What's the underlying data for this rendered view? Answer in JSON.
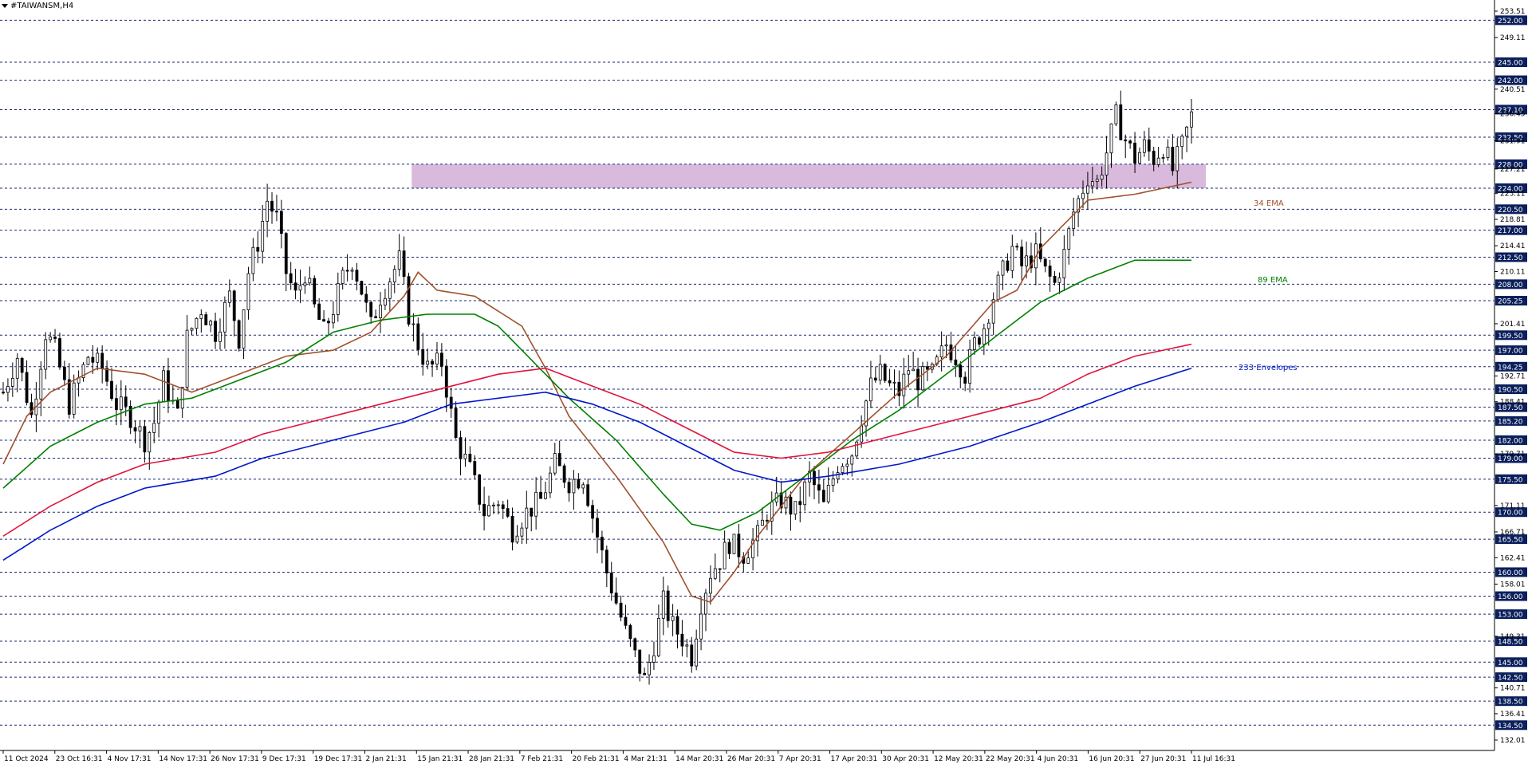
{
  "window": {
    "title": "#TAIWANSM,H4"
  },
  "colors": {
    "background": "#ffffff",
    "candle": "#000000",
    "zone": "#d9b9dc",
    "ema34": "#a0522d",
    "ema89": "#008000",
    "envelope_upper": "#e0143c",
    "envelope_lower": "#0018c8",
    "level_line": "#1a2a6e",
    "level_label_bg": "#0b1f5c"
  },
  "chart_data": {
    "type": "line",
    "instrument": "#TAIWANSM",
    "timeframe": "H4",
    "ylim": [
      132.01,
      253.51
    ],
    "price_scale_ticks": [
      "253.51",
      "249.11",
      "240.51",
      "236.45",
      "231.91",
      "227.21",
      "223.11",
      "218.81",
      "214.41",
      "210.11",
      "201.41",
      "192.71",
      "188.41",
      "179.71",
      "171.11",
      "166.71",
      "162.41",
      "158.01",
      "149.31",
      "140.71",
      "136.41",
      "132.01"
    ],
    "level_labels": [
      "252.00",
      "245.00",
      "242.00",
      "237.10",
      "232.50",
      "228.00",
      "224.00",
      "220.50",
      "217.00",
      "212.50",
      "208.00",
      "205.25",
      "199.50",
      "197.00",
      "194.25",
      "190.50",
      "187.50",
      "185.20",
      "182.00",
      "179.00",
      "175.50",
      "170.00",
      "165.50",
      "160.00",
      "156.00",
      "153.00",
      "148.50",
      "145.00",
      "142.50",
      "138.50",
      "134.50"
    ],
    "x_tick_labels": [
      "11 Oct 2024",
      "23 Oct 16:31",
      "4 Nov 17:31",
      "14 Nov 17:31",
      "26 Nov 17:31",
      "9 Dec 17:31",
      "19 Dec 17:31",
      "2 Jan 21:31",
      "15 Jan 21:31",
      "28 Jan 21:31",
      "7 Feb 21:31",
      "20 Feb 21:31",
      "4 Mar 21:31",
      "14 Mar 20:31",
      "26 Mar 20:31",
      "7 Apr 20:31",
      "17 Apr 20:31",
      "30 Apr 20:31",
      "12 May 20:31",
      "22 May 20:31",
      "4 Jun 20:31",
      "16 Jun 20:31",
      "27 Jun 20:31",
      "11 Jul 16:31"
    ],
    "zone": {
      "from": 224.0,
      "to": 228.0,
      "start_label": "15 Jan 21:31"
    },
    "indicator_labels": [
      {
        "text": "34 EMA",
        "series": "ema34"
      },
      {
        "text": "89 EMA",
        "series": "ema89"
      },
      {
        "text": "233 Envelopes",
        "series": "envelope_lower"
      }
    ],
    "close_path": [
      [
        0,
        190
      ],
      [
        3,
        196
      ],
      [
        6,
        186
      ],
      [
        9,
        200
      ],
      [
        11,
        197
      ],
      [
        14,
        188
      ],
      [
        18,
        196
      ],
      [
        21,
        194
      ],
      [
        24,
        188
      ],
      [
        27,
        186
      ],
      [
        30,
        182
      ],
      [
        32,
        185
      ],
      [
        34,
        192
      ],
      [
        37,
        186
      ],
      [
        39,
        199
      ],
      [
        42,
        204
      ],
      [
        45,
        200
      ],
      [
        48,
        206
      ],
      [
        50,
        199
      ],
      [
        52,
        210
      ],
      [
        54,
        215
      ],
      [
        56,
        222
      ],
      [
        58,
        219
      ],
      [
        60,
        210
      ],
      [
        62,
        206
      ],
      [
        64,
        210
      ],
      [
        66,
        204
      ],
      [
        68,
        200
      ],
      [
        70,
        204
      ],
      [
        72,
        209
      ],
      [
        74,
        212
      ],
      [
        76,
        207
      ],
      [
        78,
        201
      ],
      [
        80,
        206
      ],
      [
        82,
        209
      ],
      [
        84,
        212
      ],
      [
        86,
        203
      ],
      [
        88,
        198
      ],
      [
        90,
        194
      ],
      [
        93,
        195
      ],
      [
        96,
        182
      ],
      [
        99,
        177
      ],
      [
        102,
        170
      ],
      [
        105,
        172
      ],
      [
        108,
        167
      ],
      [
        111,
        170
      ],
      [
        114,
        172
      ],
      [
        117,
        178
      ],
      [
        120,
        175
      ],
      [
        123,
        176
      ],
      [
        126,
        166
      ],
      [
        128,
        160
      ],
      [
        130,
        155
      ],
      [
        132,
        150
      ],
      [
        134,
        146
      ],
      [
        136,
        142
      ],
      [
        138,
        148
      ],
      [
        140,
        155
      ],
      [
        142,
        151
      ],
      [
        144,
        149
      ],
      [
        146,
        146
      ],
      [
        148,
        155
      ],
      [
        150,
        160
      ],
      [
        152,
        162
      ],
      [
        154,
        165
      ],
      [
        157,
        163
      ],
      [
        160,
        166
      ],
      [
        162,
        170
      ],
      [
        165,
        172
      ],
      [
        168,
        170
      ],
      [
        171,
        176
      ],
      [
        174,
        171
      ],
      [
        177,
        178
      ],
      [
        180,
        180
      ],
      [
        182,
        186
      ],
      [
        184,
        191
      ],
      [
        186,
        193
      ],
      [
        188,
        191
      ],
      [
        190,
        190
      ],
      [
        192,
        194
      ],
      [
        194,
        192
      ],
      [
        197,
        193
      ],
      [
        200,
        198
      ],
      [
        202,
        196
      ],
      [
        204,
        193
      ],
      [
        206,
        198
      ],
      [
        208,
        201
      ],
      [
        210,
        206
      ],
      [
        212,
        210
      ],
      [
        214,
        214
      ],
      [
        216,
        211
      ],
      [
        219,
        213
      ],
      [
        221,
        210
      ],
      [
        223,
        208
      ],
      [
        225,
        213
      ],
      [
        227,
        220
      ],
      [
        229,
        224
      ],
      [
        230,
        226
      ],
      [
        232,
        225
      ],
      [
        234,
        230
      ],
      [
        236,
        236
      ],
      [
        238,
        232
      ],
      [
        240,
        229
      ],
      [
        242,
        231
      ],
      [
        244,
        229
      ],
      [
        246,
        231
      ],
      [
        248,
        227
      ],
      [
        250,
        231
      ],
      [
        252,
        236
      ]
    ],
    "series": [
      {
        "name": "34 EMA",
        "key": "ema34",
        "values": [
          [
            0,
            178
          ],
          [
            5,
            186
          ],
          [
            10,
            190
          ],
          [
            20,
            194
          ],
          [
            30,
            193
          ],
          [
            40,
            190
          ],
          [
            50,
            193
          ],
          [
            60,
            196
          ],
          [
            70,
            197
          ],
          [
            78,
            200
          ],
          [
            85,
            206
          ],
          [
            88,
            210
          ],
          [
            92,
            207
          ],
          [
            100,
            206
          ],
          [
            110,
            201
          ],
          [
            115,
            194
          ],
          [
            120,
            186
          ],
          [
            130,
            176
          ],
          [
            140,
            165
          ],
          [
            146,
            156
          ],
          [
            150,
            155
          ],
          [
            155,
            160
          ],
          [
            160,
            166
          ],
          [
            170,
            176
          ],
          [
            180,
            183
          ],
          [
            190,
            190
          ],
          [
            200,
            196
          ],
          [
            210,
            205
          ],
          [
            215,
            207
          ],
          [
            220,
            214
          ],
          [
            230,
            222
          ],
          [
            240,
            223
          ],
          [
            252,
            225
          ]
        ]
      },
      {
        "name": "89 EMA",
        "key": "ema89",
        "values": [
          [
            0,
            174
          ],
          [
            10,
            181
          ],
          [
            20,
            185
          ],
          [
            30,
            188
          ],
          [
            40,
            189
          ],
          [
            50,
            192
          ],
          [
            60,
            195
          ],
          [
            70,
            200
          ],
          [
            80,
            202
          ],
          [
            90,
            203
          ],
          [
            100,
            203
          ],
          [
            105,
            201
          ],
          [
            110,
            197
          ],
          [
            120,
            189
          ],
          [
            130,
            182
          ],
          [
            140,
            173
          ],
          [
            146,
            168
          ],
          [
            152,
            167
          ],
          [
            160,
            170
          ],
          [
            170,
            176
          ],
          [
            180,
            182
          ],
          [
            190,
            187
          ],
          [
            200,
            193
          ],
          [
            210,
            199
          ],
          [
            220,
            205
          ],
          [
            230,
            209
          ],
          [
            240,
            212
          ],
          [
            252,
            212
          ]
        ]
      },
      {
        "name": "233 Envelopes upper",
        "key": "envelope_upper",
        "values": [
          [
            0,
            166
          ],
          [
            10,
            171
          ],
          [
            20,
            175
          ],
          [
            30,
            178
          ],
          [
            45,
            180
          ],
          [
            55,
            183
          ],
          [
            70,
            186
          ],
          [
            85,
            189
          ],
          [
            95,
            191
          ],
          [
            105,
            193
          ],
          [
            115,
            194
          ],
          [
            125,
            191
          ],
          [
            135,
            188
          ],
          [
            145,
            184
          ],
          [
            155,
            180
          ],
          [
            165,
            179
          ],
          [
            175,
            180
          ],
          [
            190,
            183
          ],
          [
            205,
            186
          ],
          [
            220,
            189
          ],
          [
            230,
            193
          ],
          [
            240,
            196
          ],
          [
            252,
            198
          ]
        ]
      },
      {
        "name": "233 Envelopes lower",
        "key": "envelope_lower",
        "values": [
          [
            0,
            162
          ],
          [
            10,
            167
          ],
          [
            20,
            171
          ],
          [
            30,
            174
          ],
          [
            45,
            176
          ],
          [
            55,
            179
          ],
          [
            70,
            182
          ],
          [
            85,
            185
          ],
          [
            95,
            188
          ],
          [
            105,
            189
          ],
          [
            115,
            190
          ],
          [
            125,
            188
          ],
          [
            135,
            185
          ],
          [
            145,
            181
          ],
          [
            155,
            177
          ],
          [
            165,
            175
          ],
          [
            175,
            176
          ],
          [
            190,
            178
          ],
          [
            205,
            181
          ],
          [
            220,
            185
          ],
          [
            230,
            188
          ],
          [
            240,
            191
          ],
          [
            252,
            194
          ]
        ]
      }
    ]
  }
}
